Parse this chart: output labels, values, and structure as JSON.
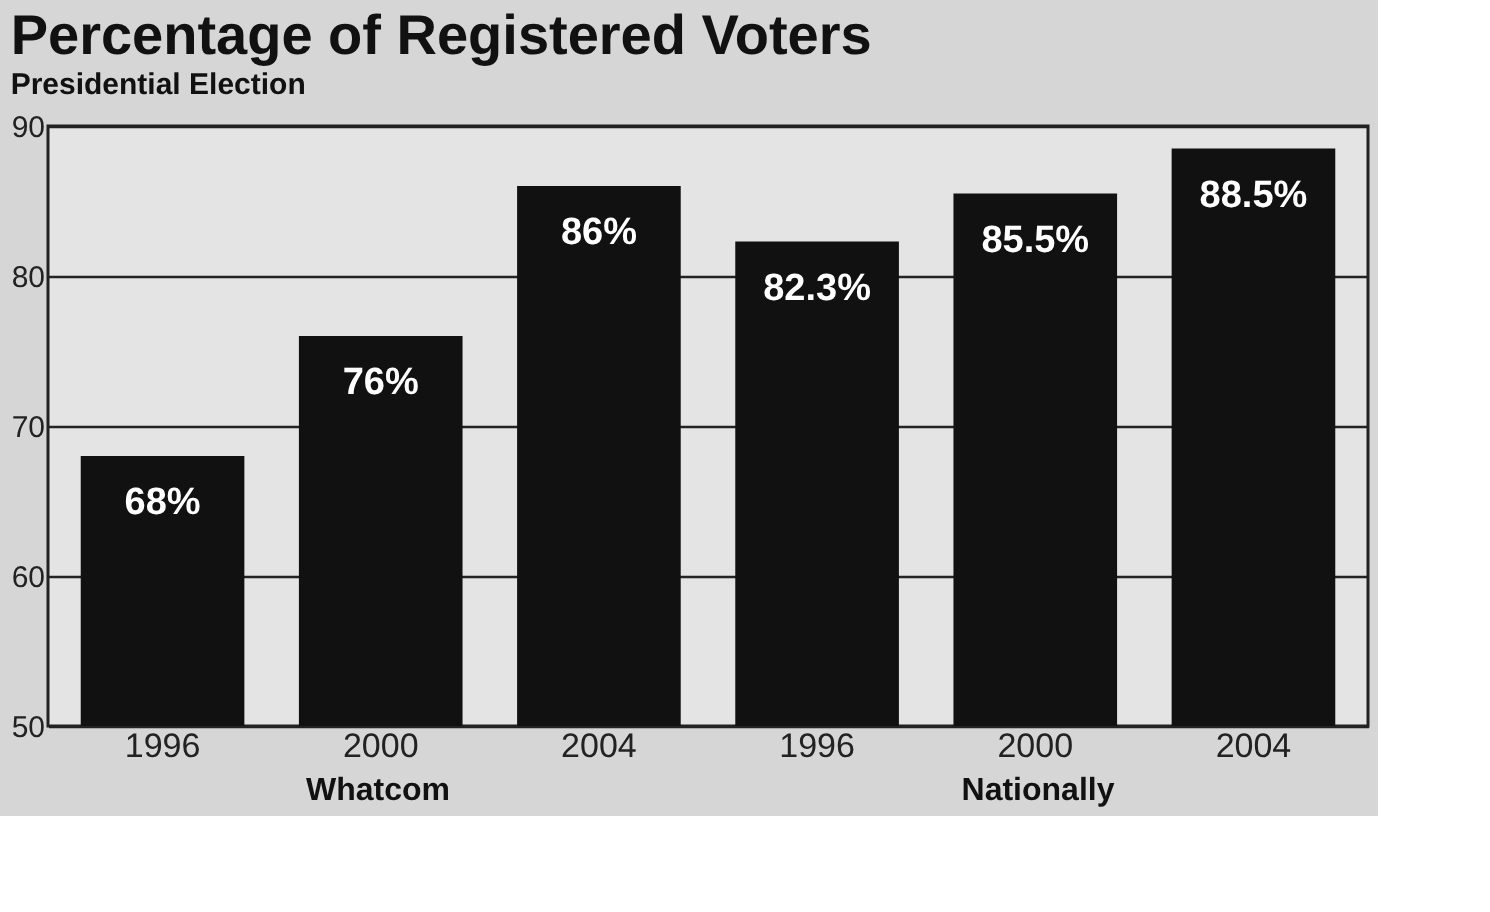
{
  "chart_data": {
    "type": "bar",
    "title": "Percentage of Registered Voters",
    "subtitle": "Presidential Election",
    "categories": [
      "1996",
      "2000",
      "2004",
      "1996",
      "2000",
      "2004"
    ],
    "values": [
      68,
      76,
      86,
      82.3,
      85.5,
      88.5
    ],
    "value_labels": [
      "68%",
      "76%",
      "86%",
      "82.3%",
      "85.5%",
      "88.5%"
    ],
    "color": "#111111",
    "ylim": [
      50,
      90
    ],
    "yticks": [
      50,
      60,
      70,
      80,
      90
    ],
    "grid": "y",
    "annotations": [
      "Whatcom",
      "Nationally"
    ]
  }
}
